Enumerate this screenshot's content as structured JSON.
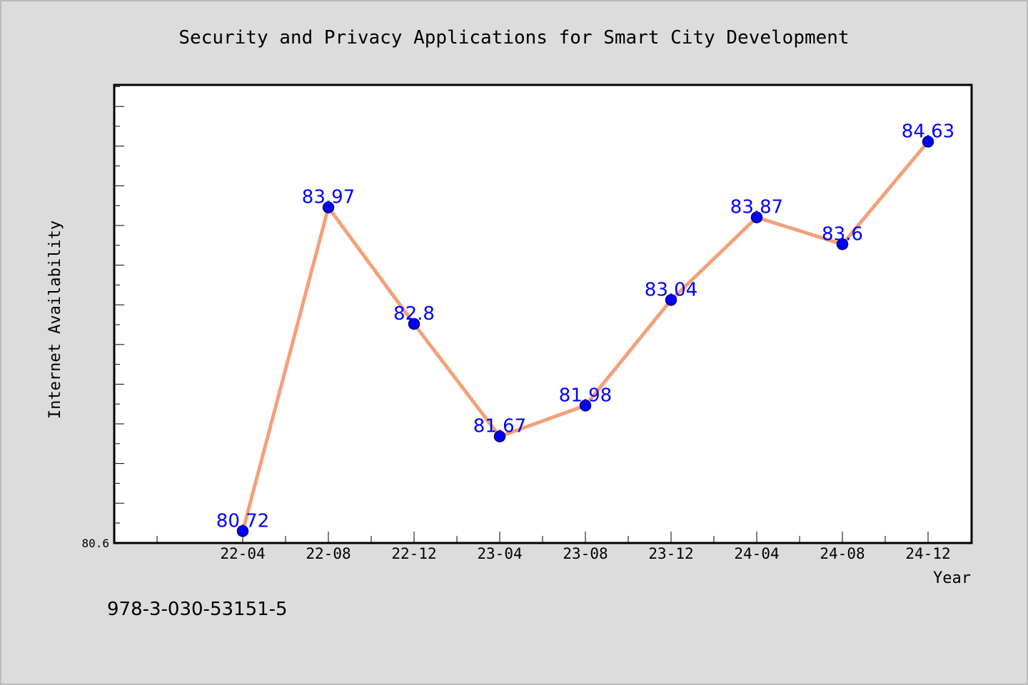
{
  "chart_data": {
    "type": "line",
    "title": "Security and Privacy Applications for Smart City Development",
    "xlabel": "Year",
    "ylabel": "Internet Availability",
    "categories": [
      "22-04",
      "22-08",
      "22-12",
      "23-04",
      "23-08",
      "23-12",
      "24-04",
      "24-08",
      "24-12"
    ],
    "series": [
      {
        "values": [
          80.72,
          83.97,
          82.8,
          81.67,
          81.98,
          83.04,
          83.87,
          83.6,
          84.63
        ],
        "labels": [
          "80.72",
          "83.97",
          "82.8",
          "81.67",
          "81.98",
          "83.04",
          "83.87",
          "83.6",
          "84.63"
        ],
        "line_color": "#f4a07a",
        "marker_color": "#0000ff"
      }
    ],
    "ylim": [
      80.6,
      85.2
    ],
    "ymin_label": "80.6",
    "grid": false,
    "legend": "none"
  },
  "footer": {
    "isbn": "978-3-030-53151-5"
  }
}
